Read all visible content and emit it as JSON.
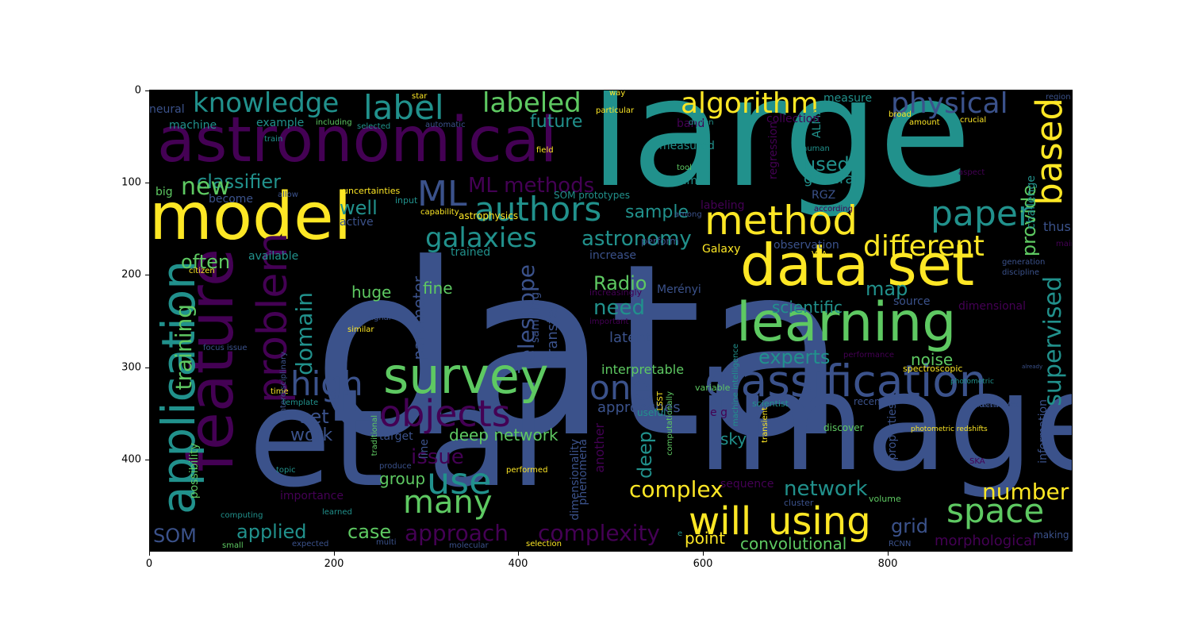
{
  "axes": {
    "x_ticks": [
      "0",
      "200",
      "400",
      "600",
      "800"
    ],
    "y_ticks": [
      "0",
      "100",
      "200",
      "300",
      "400"
    ]
  },
  "palette": [
    "#440154",
    "#3b528b",
    "#21918c",
    "#5ec962",
    "#fde725"
  ],
  "words": [
    "data",
    "large",
    "image",
    "et al",
    "astronomical",
    "model",
    "data set",
    "learning",
    "feature",
    "classification",
    "survey",
    "method",
    "label",
    "knowledge",
    "labeled",
    "algorithm",
    "physical",
    "based",
    "authors",
    "paper",
    "problem",
    "application",
    "objects",
    "ML",
    "ML methods",
    "galaxies",
    "different",
    "classifier",
    "new",
    "future",
    "high",
    "one",
    "use",
    "many",
    "will",
    "using",
    "space",
    "training",
    "domain",
    "astronomy",
    "supervised",
    "well",
    "often",
    "Radio",
    "Telescope",
    "need",
    "scientific",
    "map",
    "provide",
    "used",
    "general",
    "experts",
    "noise",
    "deep network",
    "complex",
    "network",
    "number",
    "issue",
    "approach",
    "complexity",
    "applied",
    "case",
    "SOM",
    "convolutional",
    "point",
    "grid",
    "morphological",
    "set",
    "work",
    "group",
    "interpretable",
    "approaches",
    "parameter",
    "sample",
    "latent",
    "sky",
    "deep",
    "huge",
    "fine",
    "Transfer",
    "Galaxy",
    "RGZ",
    "ALMA",
    "regression",
    "thus",
    "observation",
    "source",
    "dimensional",
    "machine",
    "neural",
    "example",
    "available",
    "trained",
    "citizen",
    "possibility",
    "importance",
    "big",
    "become",
    "active",
    "challenge",
    "measure",
    "band",
    "aim",
    "measured",
    "tool",
    "collection",
    "labeling",
    "SOM prototypes",
    "uncertainties",
    "astrophysics",
    "capability",
    "input",
    "increase",
    "increasingly",
    "important",
    "Merényi",
    "sampling",
    "dimensionality",
    "phenomena",
    "another",
    "sequence",
    "line",
    "target",
    "produce",
    "performed",
    "topic",
    "computing",
    "learned",
    "small",
    "expected",
    "multi",
    "molecular",
    "selection",
    "LSST",
    "computationally",
    "transient",
    "scientist",
    "cluster",
    "volume",
    "properties",
    "information",
    "discover",
    "recent",
    "achieved",
    "RCNN",
    "making",
    "SKA",
    "VLA",
    "e g",
    "useful",
    "variable",
    "time",
    "template",
    "traditional",
    "focus issue",
    "interdisciplinary",
    "similar",
    "signal",
    "machine intelligence",
    "generation",
    "discipline",
    "perform",
    "spectroscopic",
    "photometric",
    "photometric redshifts",
    "performance",
    "main",
    "according",
    "among",
    "human",
    "aspect",
    "crucial",
    "amount",
    "broad",
    "region",
    "star",
    "way",
    "particular",
    "driven",
    "automatic",
    "selected",
    "including",
    "train",
    "field",
    "allow",
    "e",
    "already",
    "processing"
  ]
}
